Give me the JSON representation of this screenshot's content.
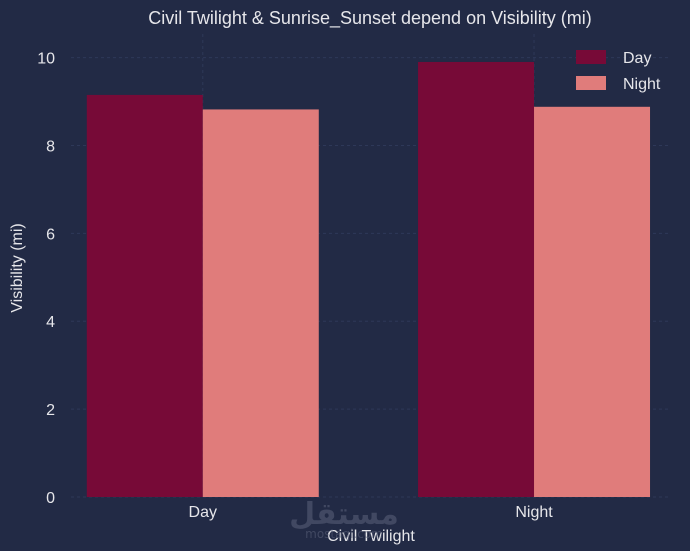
{
  "chart_data": {
    "type": "bar",
    "title": "Civil Twilight & Sunrise_Sunset depend on Visibility (mi)",
    "xlabel": "Civil Twilight",
    "ylabel": "Visibility (mi)",
    "categories": [
      "Day",
      "Night"
    ],
    "series": [
      {
        "name": "Day",
        "values": [
          9.15,
          9.9
        ],
        "color": "#770a37"
      },
      {
        "name": "Night",
        "values": [
          8.82,
          8.88
        ],
        "color": "#e07c7b"
      }
    ],
    "ylim": [
      0,
      10.4
    ],
    "yticks": [
      0,
      2,
      4,
      6,
      8,
      10
    ],
    "grid": true,
    "legend_position": "top-right",
    "background": "#222a45"
  },
  "watermark": {
    "text": "مستقل",
    "subtext": "mostaql.com"
  }
}
